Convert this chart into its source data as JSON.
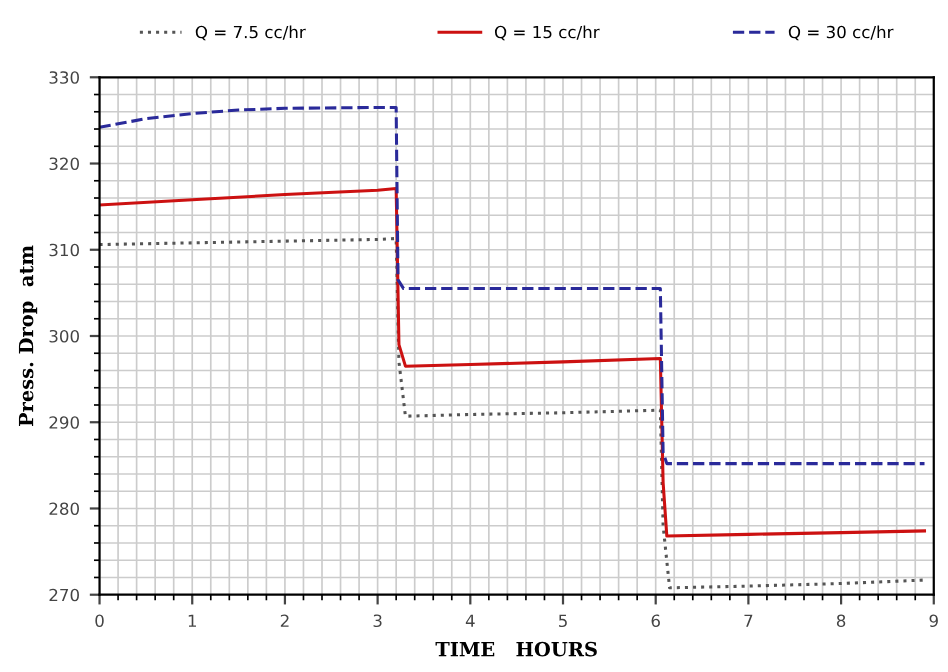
{
  "chart_data": {
    "type": "line",
    "xlabel": "TIME   HOURS",
    "ylabel": "Press. Drop  atm",
    "xlim": [
      0,
      9
    ],
    "ylim": [
      270,
      330
    ],
    "xticks": [
      0,
      1,
      2,
      3,
      4,
      5,
      6,
      7,
      8,
      9
    ],
    "yticks": [
      270,
      280,
      290,
      300,
      310,
      320,
      330
    ],
    "grid": true,
    "legend": "top",
    "marker": "none",
    "series": [
      {
        "name": "Q = 7.5 cc/hr",
        "color": "#555555",
        "line_style": "dotted",
        "x": [
          0,
          1,
          2,
          3,
          3.2,
          3.23,
          3.3,
          4,
          5,
          6.05,
          6.08,
          6.15,
          7,
          8,
          8.9
        ],
        "values": [
          310.6,
          310.8,
          311.0,
          311.2,
          311.3,
          297,
          290.7,
          290.9,
          291.1,
          291.4,
          278,
          270.8,
          271.0,
          271.3,
          271.7
        ]
      },
      {
        "name": "Q = 15 cc/hr",
        "color": "#cc1111",
        "line_style": "solid",
        "x": [
          0,
          1,
          2,
          3,
          3.2,
          3.23,
          3.3,
          4,
          5,
          6.05,
          6.08,
          6.12,
          7,
          8,
          8.9
        ],
        "values": [
          315.2,
          315.8,
          316.4,
          316.9,
          317.1,
          299,
          296.5,
          296.7,
          297.0,
          297.4,
          283,
          276.8,
          277.0,
          277.2,
          277.4
        ]
      },
      {
        "name": "Q = 30 cc/hr",
        "color": "#2a2a9a",
        "line_style": "dashed",
        "x": [
          0,
          0.5,
          1,
          1.5,
          2,
          3,
          3.2,
          3.22,
          3.28,
          4,
          5,
          6.05,
          6.08,
          6.12,
          7,
          8,
          8.9
        ],
        "values": [
          324.2,
          325.2,
          325.8,
          326.2,
          326.4,
          326.5,
          326.5,
          306.5,
          305.5,
          305.5,
          305.5,
          305.5,
          286.5,
          285.2,
          285.2,
          285.2,
          285.2
        ]
      }
    ]
  }
}
